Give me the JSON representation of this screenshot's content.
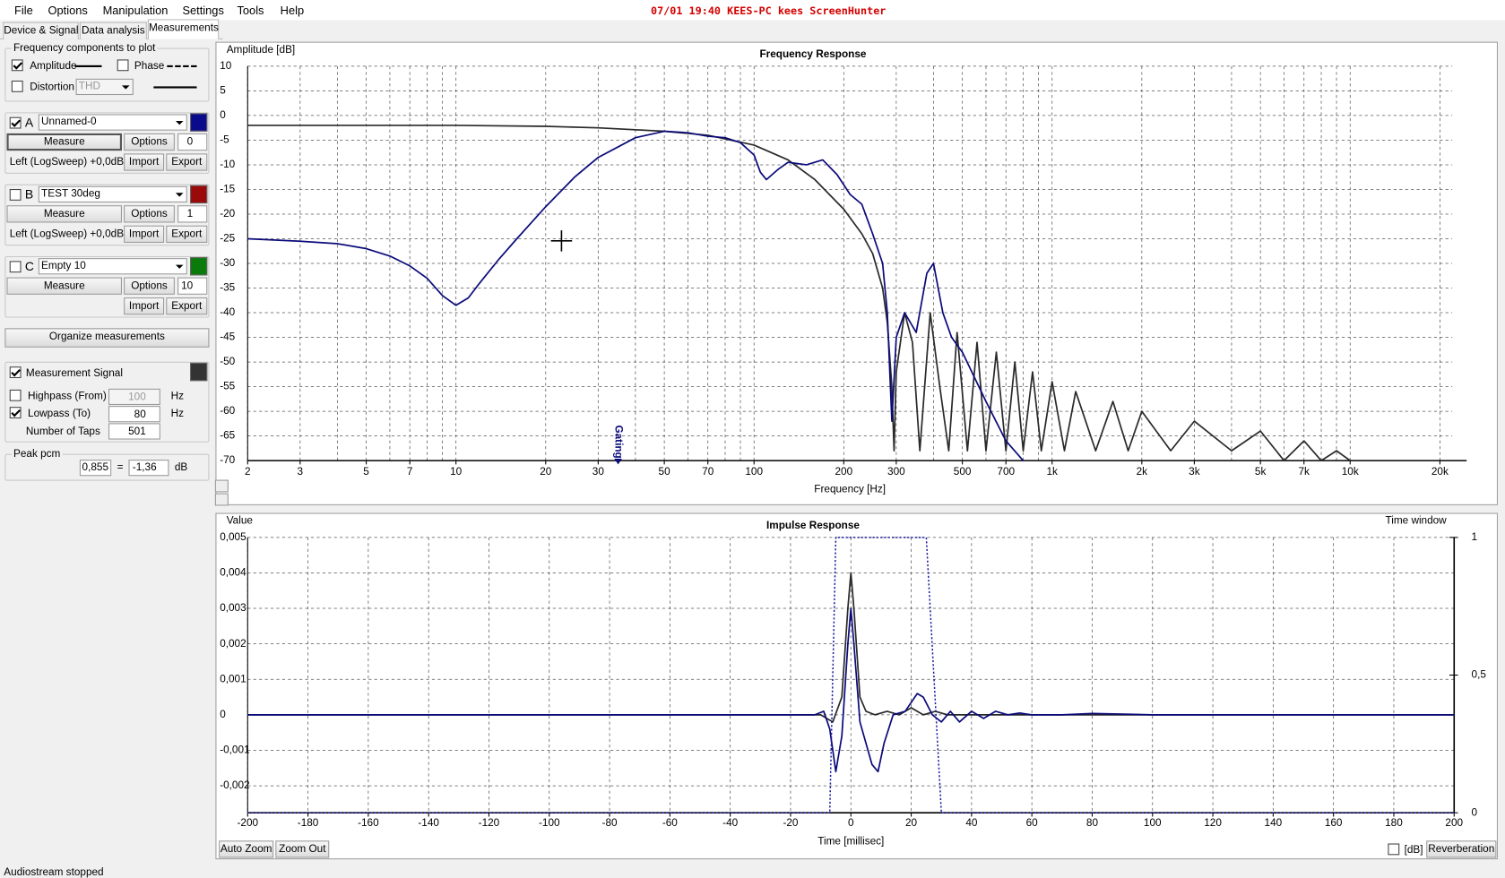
{
  "menu": [
    "File",
    "Options",
    "Manipulation",
    "Settings",
    "Tools",
    "Help"
  ],
  "watermark": "07/01 19:40 KEES-PC kees ScreenHunter",
  "tabs": [
    "Device & Signal",
    "Data analysis",
    "Measurements"
  ],
  "components": {
    "title": "Frequency components to plot",
    "amplitude": {
      "label": "Amplitude",
      "checked": true
    },
    "phase": {
      "label": "Phase",
      "checked": false
    },
    "distortion": {
      "label": "Distortion",
      "checked": false,
      "type": "THD"
    }
  },
  "measurements": [
    {
      "letter": "A",
      "name": "Unnamed-0",
      "color": "#0a0a8c",
      "checked": true,
      "measure": "Measure",
      "options": "Options",
      "index": 0,
      "source": "Left (LogSweep) +0,0dB",
      "import": "Import",
      "export": "Export"
    },
    {
      "letter": "B",
      "name": "TEST 30deg",
      "color": "#9a0a0a",
      "checked": false,
      "measure": "Measure",
      "options": "Options",
      "index": 1,
      "source": "Left (LogSweep) +0,0dB",
      "import": "Import",
      "export": "Export"
    },
    {
      "letter": "C",
      "name": "Empty 10",
      "color": "#0a7a0a",
      "checked": false,
      "measure": "Measure",
      "options": "Options",
      "index": 10,
      "import": "Import",
      "export": "Export"
    }
  ],
  "organize": "Organize measurements",
  "signal": {
    "title": "Measurement Signal",
    "checked": true,
    "color": "#333333",
    "highpass": {
      "label": "Highpass (From)",
      "checked": false,
      "value": 100,
      "unit": "Hz"
    },
    "lowpass": {
      "label": "Lowpass (To)",
      "checked": true,
      "value": 80,
      "unit": "Hz"
    },
    "taps": {
      "label": "Number of Taps",
      "value": 501
    }
  },
  "peak": {
    "title": "Peak pcm",
    "value": "0,855",
    "equals": "=",
    "db": "-1,36",
    "unit": "dB"
  },
  "chart_data": [
    {
      "type": "line",
      "title": "Frequency Response",
      "y_label": "Amplitude [dB]",
      "x_label": "Frequency [Hz]",
      "log_x": true,
      "xlim": [
        2,
        22000
      ],
      "ylim": [
        -70,
        10
      ],
      "xticks": [
        2,
        3,
        5,
        7,
        10,
        20,
        30,
        50,
        70,
        100,
        200,
        300,
        500,
        700,
        {
          "value": 1000,
          "label": "1k"
        },
        {
          "value": 2000,
          "label": "2k"
        },
        {
          "value": 3000,
          "label": "3k"
        },
        {
          "value": 5000,
          "label": "5k"
        },
        {
          "value": 7000,
          "label": "7k"
        },
        {
          "value": 10000,
          "label": "10k"
        },
        {
          "value": 20000,
          "label": "20k"
        }
      ],
      "xgrid": [
        2,
        3,
        4,
        5,
        6,
        7,
        8,
        9,
        10,
        20,
        30,
        40,
        50,
        60,
        70,
        80,
        90,
        100,
        200,
        300,
        400,
        500,
        600,
        700,
        800,
        900,
        1000,
        2000,
        3000,
        4000,
        5000,
        6000,
        7000,
        8000,
        9000,
        10000,
        20000
      ],
      "yticks": [
        10,
        5,
        0,
        -5,
        -10,
        -15,
        -20,
        -25,
        -30,
        -35,
        -40,
        -45,
        -50,
        -55,
        -60,
        -65,
        -70
      ],
      "grid": true,
      "annotation": "Gating",
      "annotation_x": 35,
      "series": [
        {
          "color": "#2a2a2a",
          "x": [
            2,
            10,
            20,
            30,
            50,
            70,
            100,
            130,
            160,
            200,
            230,
            250,
            270,
            280,
            290,
            295,
            300,
            320,
            340,
            360,
            390,
            420,
            450,
            480,
            520,
            560,
            600,
            650,
            700,
            750,
            800,
            860,
            920,
            1000,
            1100,
            1200,
            1400,
            1600,
            1800,
            2000,
            2500,
            3000,
            4000,
            5000,
            6000,
            7000,
            8000,
            9000,
            10000
          ],
          "values": [
            -2,
            -2,
            -2.2,
            -2.5,
            -3.2,
            -4,
            -6,
            -9,
            -13,
            -19,
            -24,
            -28,
            -35,
            -42,
            -55,
            -68,
            -52,
            -40,
            -46,
            -68,
            -40,
            -55,
            -68,
            -44,
            -68,
            -46,
            -68,
            -48,
            -68,
            -50,
            -68,
            -52,
            -68,
            -54,
            -68,
            -56,
            -68,
            -58,
            -68,
            -60,
            -68,
            -62,
            -68,
            -64,
            -70,
            -66,
            -70,
            -68,
            -70
          ]
        },
        {
          "color": "#0a0a7a",
          "x": [
            2,
            3,
            4,
            5,
            6,
            7,
            8,
            9,
            10,
            11,
            12,
            14,
            16,
            20,
            25,
            30,
            40,
            50,
            60,
            70,
            80,
            90,
            100,
            105,
            110,
            120,
            130,
            150,
            170,
            190,
            210,
            230,
            250,
            270,
            280,
            290,
            300,
            320,
            350,
            380,
            400,
            430,
            460,
            500,
            600,
            700,
            800
          ],
          "values": [
            -25,
            -25.5,
            -26,
            -27,
            -28.5,
            -30.5,
            -33,
            -36.5,
            -38.5,
            -37,
            -34,
            -29,
            -25,
            -18.5,
            -12.5,
            -8.5,
            -4.5,
            -3.2,
            -3.5,
            -4.2,
            -4.5,
            -5.5,
            -8,
            -11.5,
            -13,
            -11,
            -9.5,
            -10,
            -9,
            -12,
            -16,
            -18,
            -24,
            -30,
            -40,
            -62,
            -45,
            -40,
            -44,
            -32,
            -30,
            -40,
            -45,
            -48,
            -58,
            -66,
            -70
          ]
        }
      ]
    },
    {
      "type": "line",
      "title": "Impulse Response",
      "y_label": "Value",
      "y2_label": "Time window",
      "x_label": "Time [millisec]",
      "xlim": [
        -200,
        200
      ],
      "ylim": [
        -0.00276,
        0.005
      ],
      "y2lim": [
        0,
        1
      ],
      "xticks": [
        -200,
        -180,
        -160,
        -140,
        -120,
        -100,
        -80,
        -60,
        -40,
        -20,
        0,
        20,
        40,
        60,
        80,
        100,
        120,
        140,
        160,
        180,
        200
      ],
      "yticks": [
        {
          "value": 0.005,
          "label": "0,005"
        },
        {
          "value": 0.004,
          "label": "0,004"
        },
        {
          "value": 0.003,
          "label": "0,003"
        },
        {
          "value": 0.002,
          "label": "0,002"
        },
        {
          "value": 0.001,
          "label": "0,001"
        },
        0,
        {
          "value": -0.001,
          "label": "-0,001"
        },
        {
          "value": -0.002,
          "label": "-0,002"
        }
      ],
      "y2ticks": [
        0,
        {
          "value": 0.5,
          "label": "0,5"
        },
        1
      ],
      "grid": true,
      "series": [
        {
          "color": "#2a2a2a",
          "x": [
            -200,
            -10,
            -6,
            -3,
            -1,
            0,
            1,
            3,
            5,
            8,
            12,
            16,
            20,
            24,
            28,
            32,
            40,
            50,
            60,
            80,
            100,
            200
          ],
          "values": [
            0,
            0,
            -0.0002,
            0.0005,
            0.003,
            0.004,
            0.003,
            0.0005,
            0.0001,
            0,
            0.0001,
            0,
            0.0002,
            0,
            0.0001,
            0,
            0,
            0,
            0,
            0,
            0,
            0
          ]
        },
        {
          "color": "#0a0a7a",
          "x": [
            -200,
            -12,
            -9,
            -7,
            -5,
            -3,
            -1,
            0,
            1,
            3,
            5,
            7,
            9,
            11,
            14,
            18,
            22,
            24,
            27,
            30,
            33,
            36,
            40,
            44,
            48,
            52,
            56,
            60,
            70,
            80,
            100,
            150,
            200
          ],
          "values": [
            0,
            0,
            0.0001,
            -0.0004,
            -0.0016,
            -0.0006,
            0.002,
            0.003,
            0.002,
            -0.0002,
            -0.0008,
            -0.0014,
            -0.0016,
            -0.0008,
            0,
            0.0001,
            0.0006,
            0.0005,
            0,
            -0.0002,
            0.0001,
            -0.0002,
            0.0001,
            -0.0001,
            0.0001,
            0,
            5e-05,
            0,
            0,
            4e-05,
            0,
            0,
            0
          ]
        },
        {
          "color": "#1a1aa0",
          "axis": "y2",
          "dashed": true,
          "x": [
            -200,
            -7,
            -5,
            25,
            30,
            200
          ],
          "values": [
            0,
            0,
            1,
            1,
            0,
            0
          ]
        }
      ]
    }
  ],
  "zoom": {
    "auto": "Auto Zoom",
    "out": "Zoom Out",
    "db": "[dB]",
    "db_checked": false,
    "reverberation": "Reverberation"
  },
  "status": "Audiostream stopped"
}
